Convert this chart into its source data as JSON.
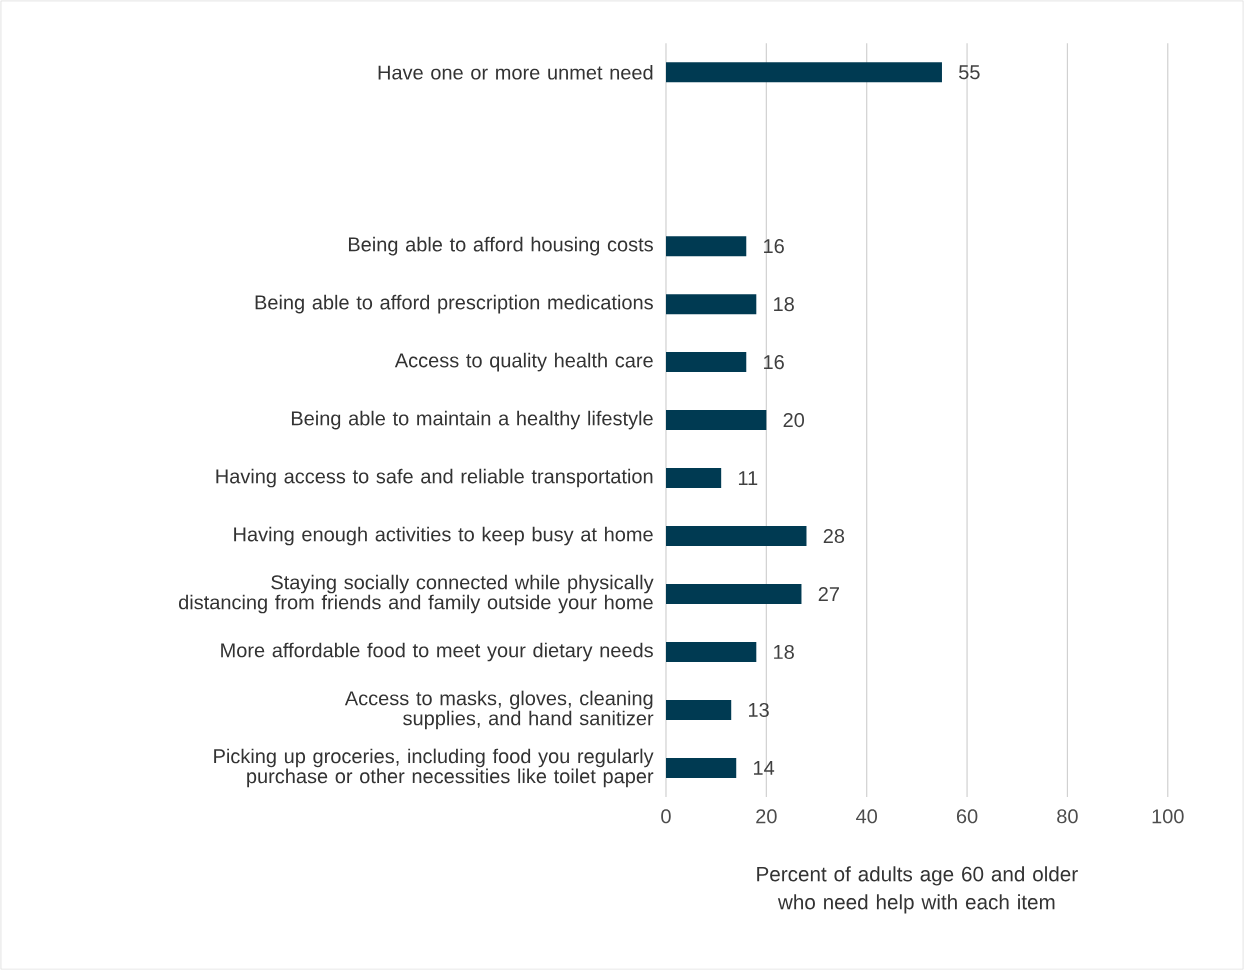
{
  "chart_data": {
    "type": "bar",
    "orientation": "horizontal",
    "categories": [
      "Have one or more unmet need",
      null,
      null,
      "Being able to afford housing costs",
      "Being able to afford prescription medications",
      "Access to quality health care",
      "Being able to maintain a healthy lifestyle",
      "Having access to safe and reliable transportation",
      "Having enough activities to keep busy at home",
      "Staying socially connected while physically distancing from friends and family outside your home",
      "More affordable food to meet your dietary needs",
      "Access to masks, gloves, cleaning supplies, and hand sanitizer",
      "Picking up groceries, including food you regularly purchase or other necessities like toilet paper"
    ],
    "values": [
      55,
      null,
      null,
      16,
      18,
      16,
      20,
      11,
      28,
      27,
      18,
      13,
      14
    ],
    "color": "#003a52",
    "xlim": [
      0,
      100
    ],
    "xticks": [
      0,
      20,
      40,
      60,
      80,
      100
    ],
    "xlabel": "Percent of adults age 60 and older who need help with each item",
    "data_labels": true,
    "grid": "x"
  }
}
